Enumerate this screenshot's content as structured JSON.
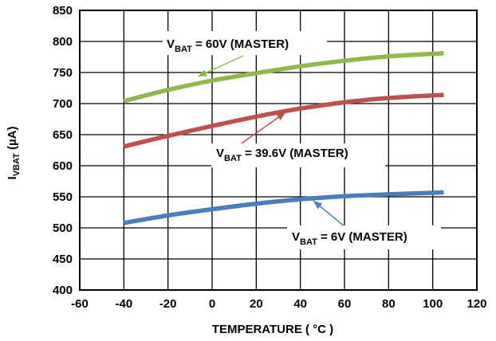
{
  "chart_data": {
    "type": "line",
    "xlabel": "TEMPERATURE ( °C )",
    "ylabel": {
      "main": "I",
      "sub": "VBAT",
      "unit": " (µA)"
    },
    "xlim": [
      -60,
      120
    ],
    "ylim": [
      400,
      850
    ],
    "xticks": [
      -60,
      -40,
      -20,
      0,
      20,
      40,
      60,
      80,
      100,
      120
    ],
    "yticks": [
      400,
      450,
      500,
      550,
      600,
      650,
      700,
      750,
      800,
      850
    ],
    "grid": true,
    "series": [
      {
        "color": "#8fb84e",
        "x": [
          -40,
          -20,
          0,
          20,
          40,
          60,
          80,
          105
        ],
        "y": [
          704,
          722,
          737,
          749,
          760,
          769,
          776,
          781
        ],
        "label": {
          "pre": "V",
          "sub": "BAT",
          "post": " = 60V (MASTER)"
        }
      },
      {
        "color": "#c0504d",
        "x": [
          -40,
          -20,
          0,
          20,
          40,
          60,
          80,
          105
        ],
        "y": [
          631,
          648,
          664,
          679,
          692,
          702,
          709,
          714
        ],
        "label": {
          "pre": "V",
          "sub": "BAT",
          "post": " = 39.6V (MASTER)"
        }
      },
      {
        "color": "#4a7ebb",
        "x": [
          -40,
          -20,
          0,
          20,
          40,
          60,
          80,
          105
        ],
        "y": [
          508,
          520,
          530,
          539,
          546,
          551,
          554,
          557
        ],
        "label": {
          "pre": "V",
          "sub": "BAT",
          "post": " = 6V (MASTER)"
        }
      }
    ]
  }
}
